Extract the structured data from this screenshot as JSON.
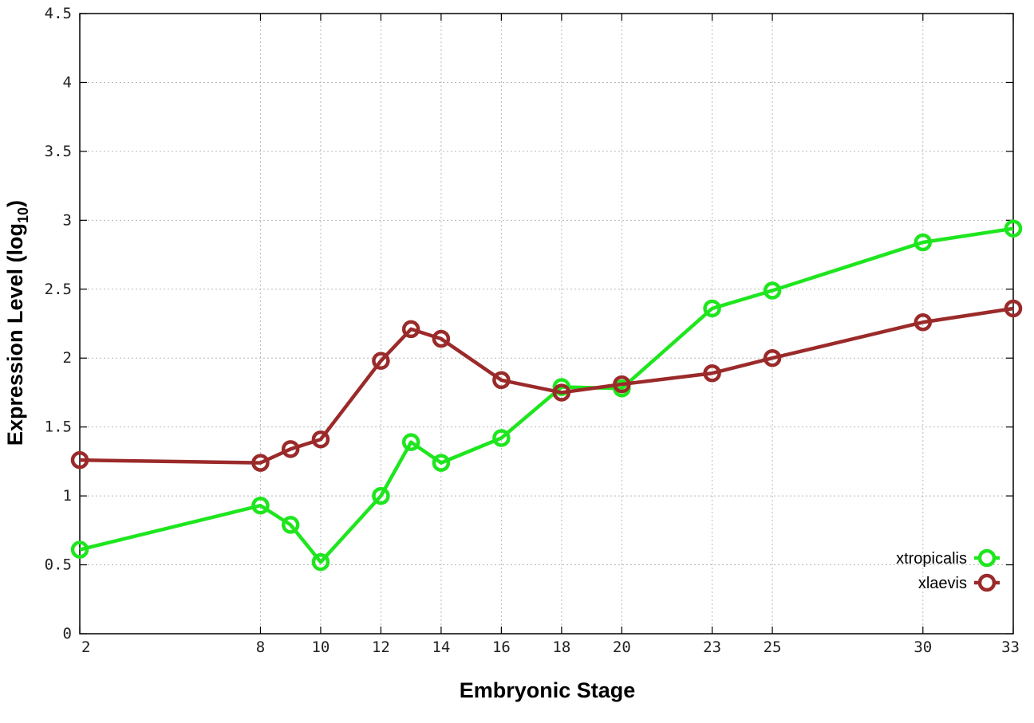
{
  "chart_data": {
    "type": "line",
    "title": "",
    "xlabel": "Embryonic Stage",
    "ylabel_main": "Expression Level (log",
    "ylabel_sub": "10",
    "ylabel_close": ")",
    "x": [
      2,
      8,
      9,
      10,
      12,
      13,
      14,
      16,
      18,
      20,
      23,
      25,
      30,
      33
    ],
    "xticks": [
      2,
      8,
      10,
      12,
      14,
      16,
      18,
      20,
      23,
      25,
      30,
      33
    ],
    "xtick_labels": [
      "2",
      "8",
      "10",
      "12",
      "14",
      "16",
      "18",
      "20",
      "23",
      "25",
      "30",
      "33"
    ],
    "xlim": [
      2,
      33
    ],
    "yticks": [
      0,
      0.5,
      1,
      1.5,
      2,
      2.5,
      3,
      3.5,
      4,
      4.5
    ],
    "ytick_labels": [
      "0",
      "0.5",
      "1",
      "1.5",
      "2",
      "2.5",
      "3",
      "3.5",
      "4",
      "4.5"
    ],
    "ylim": [
      0,
      4.5
    ],
    "grid": true,
    "legend_position": "bottom-right",
    "series": [
      {
        "name": "xtropicalis",
        "color": "#1ee61e",
        "values": [
          0.61,
          0.93,
          0.79,
          0.52,
          1.0,
          1.39,
          1.24,
          1.42,
          1.79,
          1.78,
          2.36,
          2.49,
          2.84,
          2.94
        ]
      },
      {
        "name": "xlaevis",
        "color": "#9b2a2a",
        "values": [
          1.26,
          1.24,
          1.34,
          1.41,
          1.98,
          2.21,
          2.14,
          1.84,
          1.75,
          1.81,
          1.89,
          2.0,
          2.26,
          2.36
        ]
      }
    ]
  }
}
